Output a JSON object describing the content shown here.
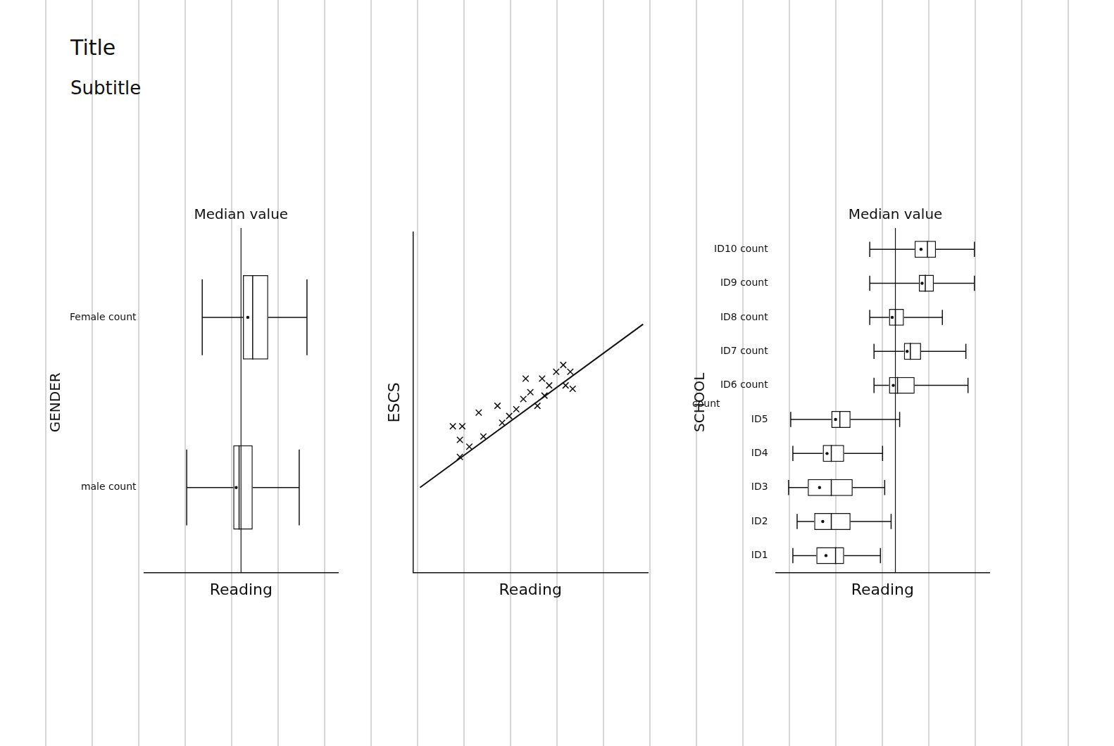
{
  "title": "Title",
  "subtitle": "Subtitle",
  "chart_data": [
    {
      "type": "box",
      "x_label": "Reading",
      "y_label": "GENDER",
      "categories": [
        "Female count",
        "male count"
      ],
      "boxes": [
        {
          "min": 30,
          "q1": 51,
          "median": 56,
          "q3": 64,
          "max": 84
        },
        {
          "min": 22,
          "q1": 46,
          "median": 49,
          "q3": 56,
          "max": 80
        }
      ],
      "annotations": [
        {
          "x": 50,
          "text": "Median value"
        }
      ],
      "xlim": [
        0,
        100
      ],
      "xticks": [],
      "grid": false,
      "tick_labels": "y"
    },
    {
      "type": "scatter",
      "x_label": "Reading",
      "y_label": "ESCS",
      "x": [
        20,
        24,
        17,
        21,
        20,
        28,
        36,
        30,
        38,
        41,
        44,
        47,
        50,
        48,
        55,
        58,
        61,
        64,
        67,
        65,
        68,
        56,
        53
      ],
      "values": [
        34,
        37,
        43,
        43,
        39,
        47,
        49,
        40,
        44,
        46,
        48,
        51,
        53,
        57,
        57,
        55,
        59,
        61,
        59,
        55,
        54,
        52,
        49
      ],
      "marker": "x",
      "trend_line": {
        "x": [
          3,
          98
        ],
        "values": [
          25,
          73
        ]
      },
      "xlim": [
        0,
        100
      ],
      "xticks": [],
      "ylim": [
        0,
        100
      ],
      "yticks": [],
      "grid": false,
      "tick_labels": false
    },
    {
      "type": "box",
      "x_label": "Reading",
      "y_label": "SCHOOL",
      "categories": [
        "ID10 count",
        "ID9 count",
        "ID8 count",
        "ID7 count",
        "ID6 count",
        "ID5",
        "ID4",
        "ID3",
        "ID2",
        "ID1"
      ],
      "boxes": [
        {
          "min": 44,
          "q1": 65,
          "median": 71,
          "q3": 75,
          "max": 93
        },
        {
          "min": 44,
          "q1": 67,
          "median": 70,
          "q3": 74,
          "max": 93
        },
        {
          "min": 44,
          "q1": 53,
          "median": 56,
          "q3": 60,
          "max": 78
        },
        {
          "min": 46,
          "q1": 60,
          "median": 63,
          "q3": 68,
          "max": 89
        },
        {
          "min": 46,
          "q1": 53,
          "median": 57,
          "q3": 65,
          "max": 90
        },
        {
          "min": 7,
          "q1": 26,
          "median": 30,
          "q3": 35,
          "max": 58
        },
        {
          "min": 8,
          "q1": 22,
          "median": 26,
          "q3": 32,
          "max": 50
        },
        {
          "min": 6,
          "q1": 15,
          "median": 26,
          "q3": 36,
          "max": 51
        },
        {
          "min": 10,
          "q1": 18,
          "median": 26,
          "q3": 35,
          "max": 54
        },
        {
          "min": 8,
          "q1": 19,
          "median": 28,
          "q3": 32,
          "max": 49
        }
      ],
      "annotations": [
        {
          "x": 56,
          "text": "Median value"
        },
        {
          "category": "ID5",
          "text": "count"
        }
      ],
      "xlim": [
        0,
        100
      ],
      "xticks": [],
      "grid": false,
      "tick_labels": "y"
    }
  ]
}
